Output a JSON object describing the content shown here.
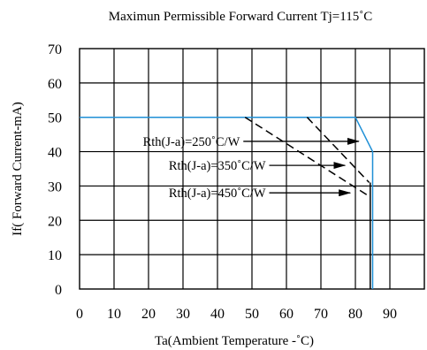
{
  "chart_data": {
    "type": "line",
    "title": "Maximun Permissible Forward Current Tj=115˚C",
    "xlabel": "Ta(Ambient Temperature -˚C)",
    "ylabel": "If( Forward Current-mA)",
    "xlim": [
      0,
      100
    ],
    "ylim": [
      0,
      70
    ],
    "xticks": [
      0,
      10,
      20,
      30,
      40,
      50,
      60,
      70,
      80,
      90
    ],
    "yticks": [
      0,
      10,
      20,
      30,
      40,
      50,
      60,
      70
    ],
    "grid": true,
    "series": [
      {
        "name": "Rth(J-a)=250˚C/W",
        "color": "#1e8fd6",
        "style": "solid",
        "points": [
          [
            0,
            50
          ],
          [
            80,
            50
          ],
          [
            85,
            40
          ],
          [
            85,
            0
          ]
        ]
      },
      {
        "name": "Rth(J-a)=350˚C/W",
        "color": "#000000",
        "style": "dashed",
        "points": [
          [
            66,
            50
          ],
          [
            84,
            31
          ]
        ]
      },
      {
        "name": "Rth(J-a)=450˚C/W",
        "color": "#000000",
        "style": "dashed",
        "points": [
          [
            48,
            50
          ],
          [
            84,
            27
          ]
        ]
      },
      {
        "name": "",
        "color": "#000000",
        "style": "solid",
        "points": [
          [
            84.3,
            31
          ],
          [
            84.3,
            0
          ]
        ]
      }
    ],
    "annotations": [
      {
        "text": "Rth(J-a)=250˚C/W",
        "arrow_from": [
          47.5,
          43
        ],
        "arrow_to": [
          81,
          43
        ]
      },
      {
        "text": "Rth(J-a)=350˚C/W",
        "arrow_from": [
          55,
          36
        ],
        "arrow_to": [
          77,
          36
        ]
      },
      {
        "text": "Rth(J-a)=450˚C/W",
        "arrow_from": [
          55,
          28
        ],
        "arrow_to": [
          78.5,
          28
        ]
      }
    ]
  }
}
